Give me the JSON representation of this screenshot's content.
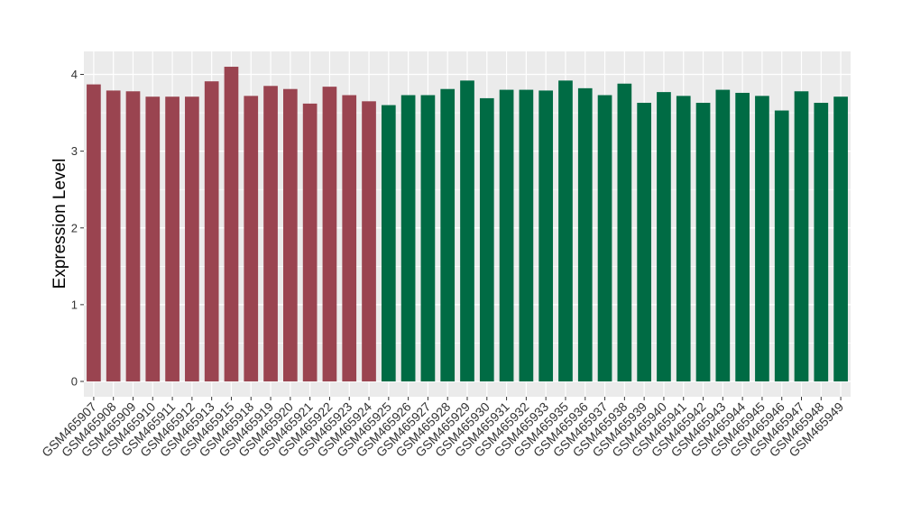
{
  "chart_data": {
    "type": "bar",
    "ylabel": "Expression Level",
    "xlabel": "",
    "ylim": [
      -0.2,
      4.3
    ],
    "yticks": [
      0,
      1,
      2,
      3,
      4
    ],
    "grid": true,
    "colors": {
      "group1": "#9a4450",
      "group2": "#006b44",
      "panel": "#ebebeb",
      "grid": "#ffffff",
      "axis_tick": "#333333"
    },
    "categories": [
      "GSM465907",
      "GSM465908",
      "GSM465909",
      "GSM465910",
      "GSM465911",
      "GSM465912",
      "GSM465913",
      "GSM465915",
      "GSM465918",
      "GSM465919",
      "GSM465920",
      "GSM465921",
      "GSM465922",
      "GSM465923",
      "GSM465924",
      "GSM465925",
      "GSM465926",
      "GSM465927",
      "GSM465928",
      "GSM465929",
      "GSM465930",
      "GSM465931",
      "GSM465932",
      "GSM465933",
      "GSM465935",
      "GSM465936",
      "GSM465937",
      "GSM465938",
      "GSM465939",
      "GSM465940",
      "GSM465941",
      "GSM465942",
      "GSM465943",
      "GSM465944",
      "GSM465945",
      "GSM465946",
      "GSM465947",
      "GSM465948",
      "GSM465949"
    ],
    "values": [
      3.87,
      3.79,
      3.78,
      3.71,
      3.71,
      3.71,
      3.91,
      4.1,
      3.72,
      3.85,
      3.81,
      3.62,
      3.84,
      3.73,
      3.65,
      3.6,
      3.73,
      3.73,
      3.81,
      3.92,
      3.69,
      3.8,
      3.8,
      3.79,
      3.92,
      3.82,
      3.73,
      3.88,
      3.63,
      3.77,
      3.72,
      3.63,
      3.8,
      3.76,
      3.72,
      3.53,
      3.78,
      3.63,
      3.71
    ],
    "groups": [
      1,
      1,
      1,
      1,
      1,
      1,
      1,
      1,
      1,
      1,
      1,
      1,
      1,
      1,
      1,
      2,
      2,
      2,
      2,
      2,
      2,
      2,
      2,
      2,
      2,
      2,
      2,
      2,
      2,
      2,
      2,
      2,
      2,
      2,
      2,
      2,
      2,
      2,
      2
    ]
  }
}
